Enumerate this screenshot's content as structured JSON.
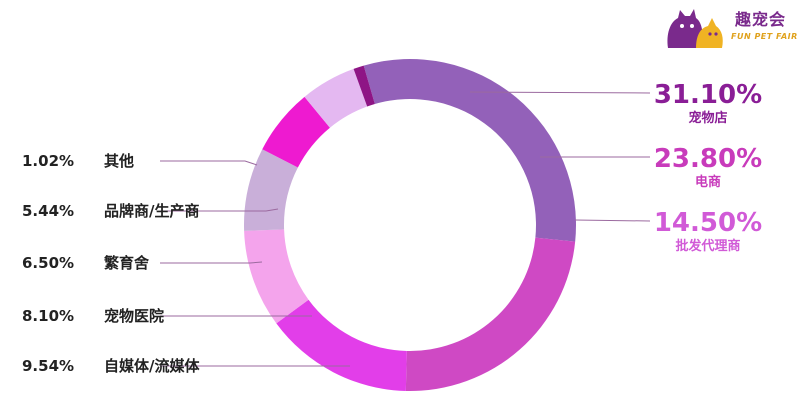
{
  "logo": {
    "title": "趣宠会",
    "subtitle": "FUN PET FAIR"
  },
  "chart_data": {
    "type": "pie",
    "donut": true,
    "slices": [
      {
        "name": "宠物店",
        "value": 31.1,
        "label": "31.10%",
        "color": "#9361b9",
        "side": "right",
        "textColor": "#8a1e96"
      },
      {
        "name": "电商",
        "value": 23.8,
        "label": "23.80%",
        "color": "#cf49c4",
        "side": "right",
        "textColor": "#c83bbb"
      },
      {
        "name": "批发代理商",
        "value": 14.5,
        "label": "14.50%",
        "color": "#e23ee9",
        "side": "right",
        "textColor": "#d15ad7"
      },
      {
        "name": "自媒体/流媒体",
        "value": 9.54,
        "label": "9.54%",
        "color": "#f4a4ec",
        "side": "left"
      },
      {
        "name": "宠物医院",
        "value": 8.1,
        "label": "8.10%",
        "color": "#c9afd9",
        "side": "left"
      },
      {
        "name": "繁育舍",
        "value": 6.5,
        "label": "6.50%",
        "color": "#ee1ad0",
        "side": "left"
      },
      {
        "name": "品牌商/生产商",
        "value": 5.44,
        "label": "5.44%",
        "color": "#e4b8f1",
        "side": "left"
      },
      {
        "name": "其他",
        "value": 1.02,
        "label": "1.02%",
        "color": "#8e1585",
        "side": "left"
      }
    ]
  }
}
